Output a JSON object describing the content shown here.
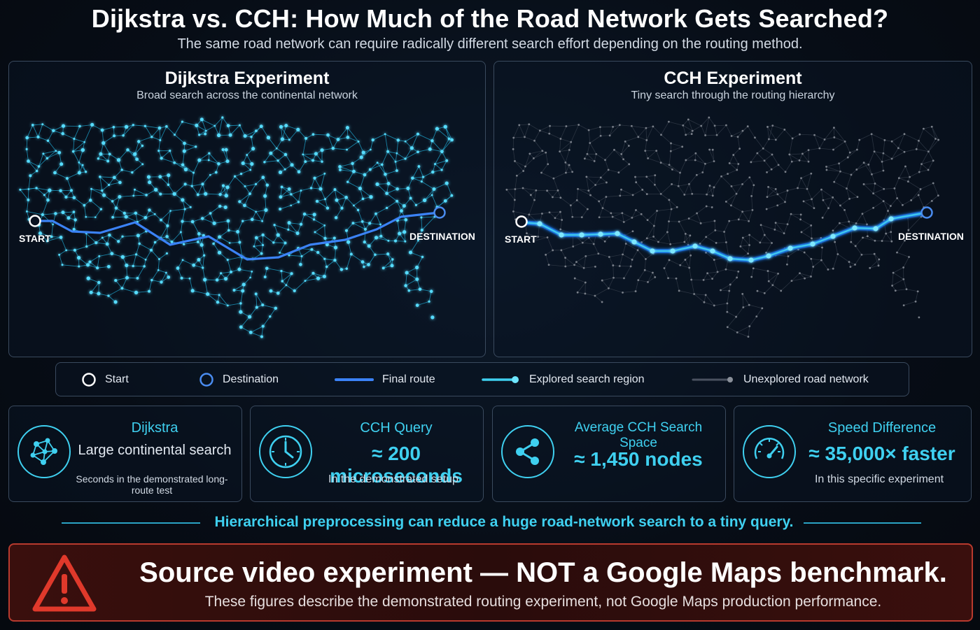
{
  "header": {
    "title": "Dijkstra vs. CCH: How Much of the Road Network Gets Searched?",
    "subtitle": "The same road network can require radically different search effort depending on the routing method."
  },
  "panels": {
    "dijkstra": {
      "title": "Dijkstra Experiment",
      "subtitle": "Broad search across the continental network",
      "start_label": "START",
      "destination_label": "DESTINATION"
    },
    "cch": {
      "title": "CCH Experiment",
      "subtitle": "Tiny search through the routing hierarchy",
      "start_label": "START",
      "destination_label": "DESTINATION"
    }
  },
  "legend": {
    "items": [
      {
        "label": "Start",
        "icon": "start-circle-icon"
      },
      {
        "label": "Destination",
        "icon": "destination-circle-icon"
      },
      {
        "label": "Final route",
        "icon": "route-line-icon"
      },
      {
        "label": "Explored search region",
        "icon": "explored-line-icon"
      },
      {
        "label": "Unexplored road network",
        "icon": "unexplored-line-icon"
      }
    ]
  },
  "stats": [
    {
      "heading": "Dijkstra",
      "value": "Large continental search",
      "note": "Seconds in the demonstrated long-route test",
      "icon": "network-graph-icon"
    },
    {
      "heading": "CCH Query",
      "value": "≈ 200 microseconds",
      "note": "In the demonstrated setup",
      "icon": "clock-icon"
    },
    {
      "heading": "Average CCH Search Space",
      "value": "≈ 1,450 nodes",
      "note": "",
      "icon": "share-nodes-icon"
    },
    {
      "heading": "Speed Difference",
      "value": "≈ 35,000× faster",
      "note": "In this specific experiment",
      "icon": "speedometer-icon"
    }
  ],
  "tagline": "Hierarchical preprocessing can reduce a huge road-network search to a tiny query.",
  "warning": {
    "title": "Source video experiment — NOT a Google Maps benchmark.",
    "subtitle": "These figures describe the demonstrated routing experiment, not Google Maps production performance.",
    "icon": "warning-triangle-icon"
  },
  "colors": {
    "accent": "#3fd0f0",
    "route": "#3b82f6",
    "destination": "#4a8cf0",
    "warning": "#e0392b"
  }
}
